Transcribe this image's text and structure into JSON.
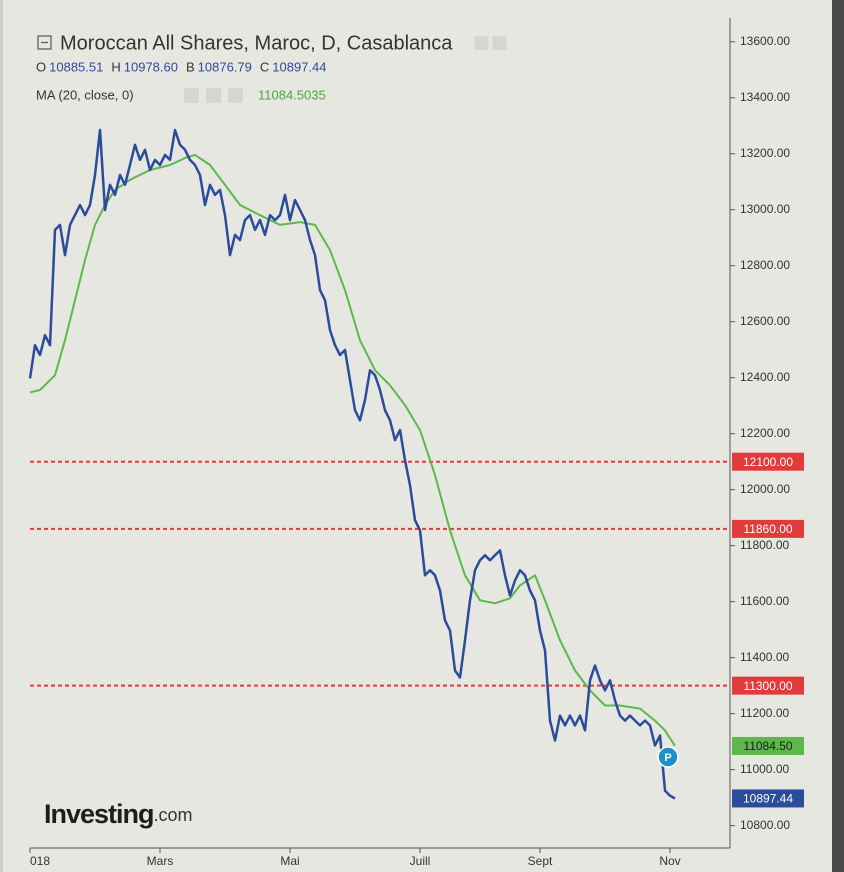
{
  "chart_data": {
    "type": "line",
    "title": "Moroccan All Shares, Maroc, D, Casablanca",
    "ohlc": [
      {
        "key": "O",
        "value": "10885.51"
      },
      {
        "key": "H",
        "value": "10978.60"
      },
      {
        "key": "B",
        "value": "10876.79"
      },
      {
        "key": "C",
        "value": "10897.44"
      }
    ],
    "ma_value_label": "11084.5035",
    "xlim": [
      0,
      140
    ],
    "xticks": [
      {
        "value": 0,
        "label": "018"
      },
      {
        "value": 26,
        "label": "Mars"
      },
      {
        "value": 52,
        "label": "Mai"
      },
      {
        "value": 78,
        "label": "Juill"
      },
      {
        "value": 102,
        "label": "Sept"
      },
      {
        "value": 128,
        "label": "Nov"
      }
    ],
    "ylim": [
      10720,
      13685
    ],
    "yticks": [
      {
        "value": 10800,
        "label": "10800.00"
      },
      {
        "value": 11000,
        "label": "11000.00"
      },
      {
        "value": 11200,
        "label": "11200.00"
      },
      {
        "value": 11400,
        "label": "11400.00"
      },
      {
        "value": 11600,
        "label": "11600.00"
      },
      {
        "value": 11800,
        "label": "11800.00"
      },
      {
        "value": 12000,
        "label": "12000.00"
      },
      {
        "value": 12200,
        "label": "12200.00"
      },
      {
        "value": 12400,
        "label": "12400.00"
      },
      {
        "value": 12600,
        "label": "12600.00"
      },
      {
        "value": 12800,
        "label": "12800.00"
      },
      {
        "value": 13000,
        "label": "13000.00"
      },
      {
        "value": 13200,
        "label": "13200.00"
      },
      {
        "value": 13400,
        "label": "13400.00"
      },
      {
        "value": 13600,
        "label": "13600.00"
      }
    ],
    "hlines": [
      {
        "value": 12100,
        "label": "12100.00"
      },
      {
        "value": 11860,
        "label": "11860.00"
      },
      {
        "value": 11300,
        "label": "11300.00"
      }
    ],
    "hline_color": "#e23b3b",
    "series": [
      {
        "color": "#2b4c9b",
        "last_label": "10897.44",
        "x": [
          0,
          1,
          2,
          3,
          4,
          5,
          6,
          7,
          8,
          9,
          10,
          11,
          12,
          13,
          14,
          15,
          16,
          17,
          18,
          19,
          20,
          21,
          22,
          23,
          24,
          25,
          26,
          27,
          28,
          29,
          30,
          31,
          32,
          33,
          34,
          35,
          36,
          37,
          38,
          39,
          40,
          41,
          42,
          43,
          44,
          45,
          46,
          47,
          48,
          49,
          50,
          51,
          52,
          53,
          54,
          55,
          56,
          57,
          58,
          59,
          60,
          61,
          62,
          63,
          64,
          65,
          66,
          67,
          68,
          69,
          70,
          71,
          72,
          73,
          74,
          75,
          76,
          77,
          78,
          79,
          80,
          81,
          82,
          83,
          84,
          85,
          86,
          87,
          88,
          89,
          90,
          91,
          92,
          93,
          94,
          95,
          96,
          97,
          98,
          99,
          100,
          101,
          102,
          103,
          104,
          105,
          106,
          107,
          108,
          109,
          110,
          111,
          112,
          113,
          114,
          115,
          116,
          117,
          118,
          119,
          120,
          121,
          122,
          123,
          124,
          125,
          126,
          127,
          128,
          129
        ],
        "values": [
          12398,
          12516,
          12481,
          12552,
          12516,
          12928,
          12946,
          12838,
          12946,
          12981,
          13017,
          12981,
          13017,
          13124,
          13285,
          12999,
          13089,
          13053,
          13124,
          13089,
          13160,
          13232,
          13178,
          13214,
          13142,
          13178,
          13160,
          13196,
          13178,
          13285,
          13232,
          13214,
          13178,
          13160,
          13124,
          13017,
          13089,
          13053,
          13071,
          12981,
          12838,
          12910,
          12892,
          12963,
          12981,
          12928,
          12963,
          12910,
          12981,
          12963,
          12981,
          13053,
          12963,
          13035,
          12999,
          12963,
          12892,
          12838,
          12713,
          12677,
          12570,
          12516,
          12481,
          12499,
          12391,
          12284,
          12248,
          12320,
          12427,
          12409,
          12356,
          12284,
          12248,
          12177,
          12213,
          12105,
          12016,
          11891,
          11855,
          11694,
          11712,
          11694,
          11640,
          11533,
          11497,
          11354,
          11329,
          11462,
          11605,
          11712,
          11748,
          11766,
          11748,
          11766,
          11783,
          11694,
          11622,
          11676,
          11712,
          11694,
          11640,
          11605,
          11497,
          11426,
          11175,
          11104,
          11193,
          11158,
          11193,
          11158,
          11193,
          11140,
          11319,
          11372,
          11319,
          11283,
          11319,
          11247,
          11193,
          11175,
          11193,
          11175,
          11158,
          11175,
          11158,
          11086,
          11122,
          10925,
          10907,
          10897
        ]
      },
      {
        "name": "MA (20, close, 0)",
        "color": "#5cb84a",
        "last_label": "11084.50",
        "x": [
          0,
          2,
          5,
          7,
          9,
          11,
          13,
          15,
          17,
          20,
          24,
          28,
          31,
          33,
          36,
          39,
          42,
          46,
          50,
          54,
          57,
          60,
          63,
          66,
          69,
          72,
          75,
          78,
          81,
          84,
          87,
          90,
          93,
          96,
          98,
          101,
          103,
          106,
          109,
          112,
          115,
          118,
          122,
          125,
          127,
          129
        ],
        "values": [
          12348,
          12356,
          12409,
          12534,
          12677,
          12820,
          12946,
          13017,
          13071,
          13107,
          13142,
          13160,
          13185,
          13196,
          13160,
          13089,
          13017,
          12981,
          12946,
          12956,
          12946,
          12856,
          12713,
          12534,
          12427,
          12373,
          12302,
          12213,
          12052,
          11855,
          11694,
          11605,
          11594,
          11612,
          11658,
          11694,
          11605,
          11462,
          11354,
          11283,
          11229,
          11229,
          11218,
          11175,
          11140,
          11084.5
        ]
      }
    ],
    "badge": "P",
    "watermark": "Investing",
    "watermark_suffix": ".com"
  }
}
